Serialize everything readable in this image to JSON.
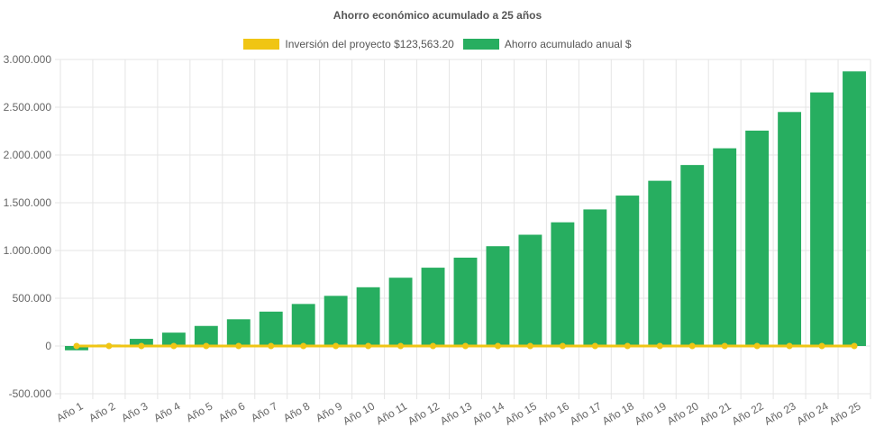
{
  "colors": {
    "investment": "#f0c514",
    "savings": "#27ae60",
    "grid": "#e5e5e5"
  },
  "chart_data": {
    "type": "bar",
    "title": "Ahorro económico acumulado a 25 años",
    "categories": [
      "Año 1",
      "Año 2",
      "Año 3",
      "Año 4",
      "Año 5",
      "Año 6",
      "Año 7",
      "Año 8",
      "Año 9",
      "Año 10",
      "Año 11",
      "Año 12",
      "Año 13",
      "Año 14",
      "Año 15",
      "Año 16",
      "Año 17",
      "Año 18",
      "Año 19",
      "Año 20",
      "Año 21",
      "Año 22",
      "Año 23",
      "Año 24",
      "Año 25"
    ],
    "ylim": [
      -500000,
      3000000
    ],
    "yticks": [
      "3.000.000",
      "2.500.000",
      "2.000.000",
      "1.500.000",
      "1.000.000",
      "500.000",
      "0",
      "-500.000"
    ],
    "ytick_values": [
      3000000,
      2500000,
      2000000,
      1500000,
      1000000,
      500000,
      0,
      -500000
    ],
    "grid": true,
    "legend_position": "top",
    "series": [
      {
        "name": "Inversión del proyecto $123,563.20",
        "type": "line",
        "values": [
          0,
          0,
          0,
          0,
          0,
          0,
          0,
          0,
          0,
          0,
          0,
          0,
          0,
          0,
          0,
          0,
          0,
          0,
          0,
          0,
          0,
          0,
          0,
          0,
          0
        ]
      },
      {
        "name": "Ahorro acumulado anual $",
        "type": "bar",
        "values": [
          -45000,
          15000,
          75000,
          140000,
          210000,
          280000,
          360000,
          440000,
          525000,
          615000,
          715000,
          820000,
          925000,
          1045000,
          1165000,
          1295000,
          1430000,
          1575000,
          1730000,
          1895000,
          2070000,
          2255000,
          2450000,
          2655000,
          2875000
        ]
      }
    ]
  }
}
